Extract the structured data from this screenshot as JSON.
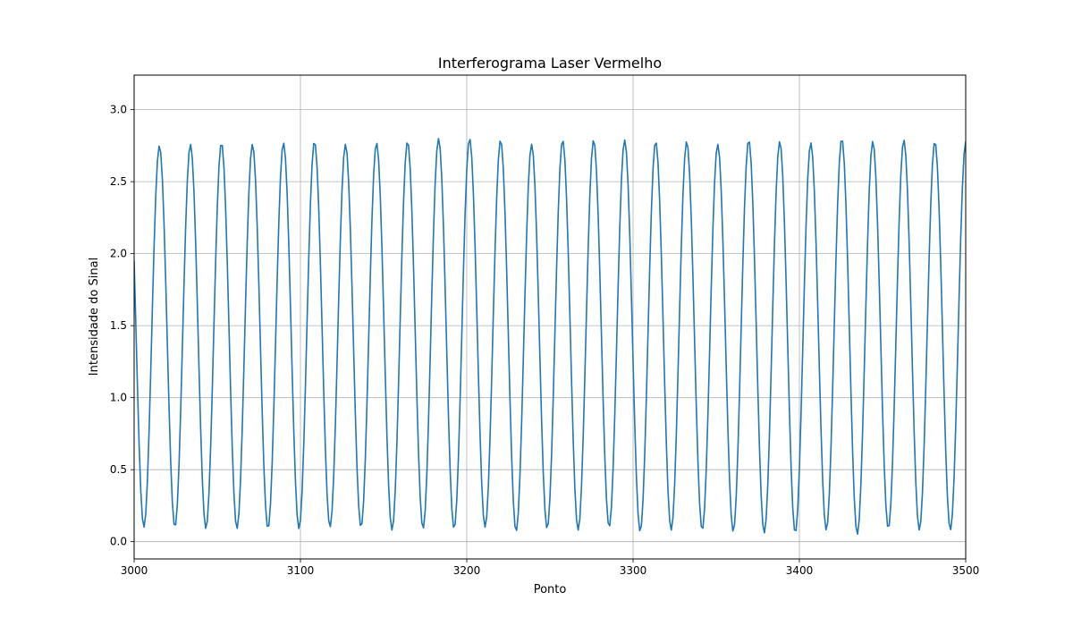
{
  "chart_data": {
    "type": "line",
    "title": "Interferograma Laser Vermelho",
    "xlabel": "Ponto",
    "ylabel": "Intensidade do Sinal",
    "xlim": [
      3000,
      3500
    ],
    "ylim": [
      -0.12,
      3.24
    ],
    "xticks": [
      3000,
      3100,
      3200,
      3300,
      3400,
      3500
    ],
    "yticks": [
      0.0,
      0.5,
      1.0,
      1.5,
      2.0,
      2.5,
      3.0
    ],
    "xtick_labels": [
      "3000",
      "3100",
      "3200",
      "3300",
      "3400",
      "3500"
    ],
    "ytick_labels": [
      "0.0",
      "0.5",
      "1.0",
      "1.5",
      "2.0",
      "2.5",
      "3.0"
    ],
    "grid": true,
    "series": [
      {
        "color": "#1f77b4",
        "signal": {
          "x_start": 3000,
          "x_end": 3500,
          "sample_step": 1,
          "period": 18.65,
          "first_peak_x": 3015.2,
          "y_min": 0.1,
          "y_max": 2.77
        },
        "peaks": [
          [
            3015.2,
            2.75
          ],
          [
            3033.8,
            2.76
          ],
          [
            3052.5,
            2.77
          ],
          [
            3071.1,
            2.76
          ],
          [
            3089.8,
            2.77
          ],
          [
            3108.4,
            2.78
          ],
          [
            3127.1,
            2.76
          ],
          [
            3145.7,
            2.77
          ],
          [
            3164.4,
            2.78
          ],
          [
            3183.0,
            2.8
          ],
          [
            3201.7,
            2.8
          ],
          [
            3220.3,
            2.79
          ],
          [
            3239.0,
            2.76
          ],
          [
            3257.6,
            2.79
          ],
          [
            3276.3,
            2.79
          ],
          [
            3294.9,
            2.79
          ],
          [
            3313.6,
            2.78
          ],
          [
            3332.2,
            2.78
          ],
          [
            3350.9,
            2.76
          ],
          [
            3369.5,
            2.79
          ],
          [
            3388.2,
            2.78
          ],
          [
            3406.8,
            2.77
          ],
          [
            3425.5,
            2.8
          ],
          [
            3444.1,
            2.78
          ],
          [
            3462.8,
            2.79
          ],
          [
            3481.4,
            2.78
          ]
        ],
        "troughs": [
          [
            3005.9,
            0.1
          ],
          [
            3024.5,
            0.1
          ],
          [
            3043.2,
            0.09
          ],
          [
            3061.8,
            0.09
          ],
          [
            3080.5,
            0.09
          ],
          [
            3099.1,
            0.09
          ],
          [
            3117.8,
            0.1
          ],
          [
            3136.4,
            0.1
          ],
          [
            3155.1,
            0.08
          ],
          [
            3173.7,
            0.09
          ],
          [
            3192.4,
            0.09
          ],
          [
            3211.0,
            0.1
          ],
          [
            3229.7,
            0.07
          ],
          [
            3248.3,
            0.09
          ],
          [
            3267.0,
            0.08
          ],
          [
            3285.6,
            0.1
          ],
          [
            3304.3,
            0.07
          ],
          [
            3322.9,
            0.08
          ],
          [
            3341.6,
            0.08
          ],
          [
            3360.2,
            0.07
          ],
          [
            3378.9,
            0.06
          ],
          [
            3397.5,
            0.06
          ],
          [
            3416.2,
            0.08
          ],
          [
            3434.8,
            0.05
          ],
          [
            3453.5,
            0.09
          ],
          [
            3472.1,
            0.08
          ],
          [
            3490.8,
            0.08
          ]
        ]
      }
    ]
  }
}
